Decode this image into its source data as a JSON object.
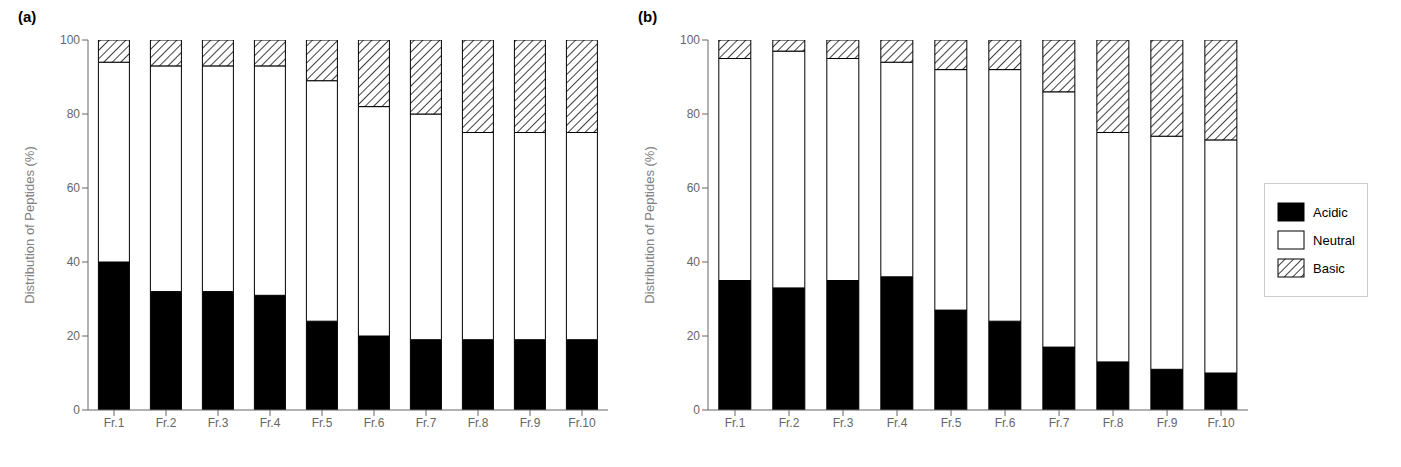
{
  "chart_data": [
    {
      "type": "bar",
      "stacked": true,
      "title": "(a)",
      "ylabel": "Distribution of Peptides (%)",
      "categories": [
        "Fr.1",
        "Fr.2",
        "Fr.3",
        "Fr.4",
        "Fr.5",
        "Fr.6",
        "Fr.7",
        "Fr.8",
        "Fr.9",
        "Fr.10"
      ],
      "series": [
        {
          "name": "Acidic",
          "color": "#000000",
          "values": [
            40,
            32,
            32,
            31,
            24,
            20,
            19,
            19,
            19,
            19
          ]
        },
        {
          "name": "Neutral",
          "color": "#ffffff",
          "values": [
            54,
            61,
            61,
            62,
            65,
            62,
            61,
            56,
            56,
            56
          ]
        },
        {
          "name": "Basic",
          "color": "#ffffff",
          "values": [
            6,
            7,
            7,
            7,
            11,
            18,
            20,
            25,
            25,
            25
          ]
        }
      ],
      "ylim": [
        0,
        100
      ],
      "yticks": [
        0,
        20,
        40,
        60,
        80,
        100
      ],
      "grid": false,
      "legend": false
    },
    {
      "type": "bar",
      "stacked": true,
      "title": "(b)",
      "ylabel": "Distribution of Peptides (%)",
      "categories": [
        "Fr.1",
        "Fr.2",
        "Fr.3",
        "Fr.4",
        "Fr.5",
        "Fr.6",
        "Fr.7",
        "Fr.8",
        "Fr.9",
        "Fr.10"
      ],
      "series": [
        {
          "name": "Acidic",
          "color": "#000000",
          "values": [
            35,
            33,
            35,
            36,
            27,
            24,
            17,
            13,
            11,
            10
          ]
        },
        {
          "name": "Neutral",
          "color": "#ffffff",
          "values": [
            60,
            64,
            60,
            58,
            65,
            68,
            69,
            62,
            63,
            63
          ]
        },
        {
          "name": "Basic",
          "color": "#ffffff",
          "values": [
            5,
            3,
            5,
            6,
            8,
            8,
            14,
            25,
            26,
            27
          ]
        }
      ],
      "ylim": [
        0,
        100
      ],
      "yticks": [
        0,
        20,
        40,
        60,
        80,
        100
      ],
      "grid": false,
      "legend": "right"
    }
  ]
}
